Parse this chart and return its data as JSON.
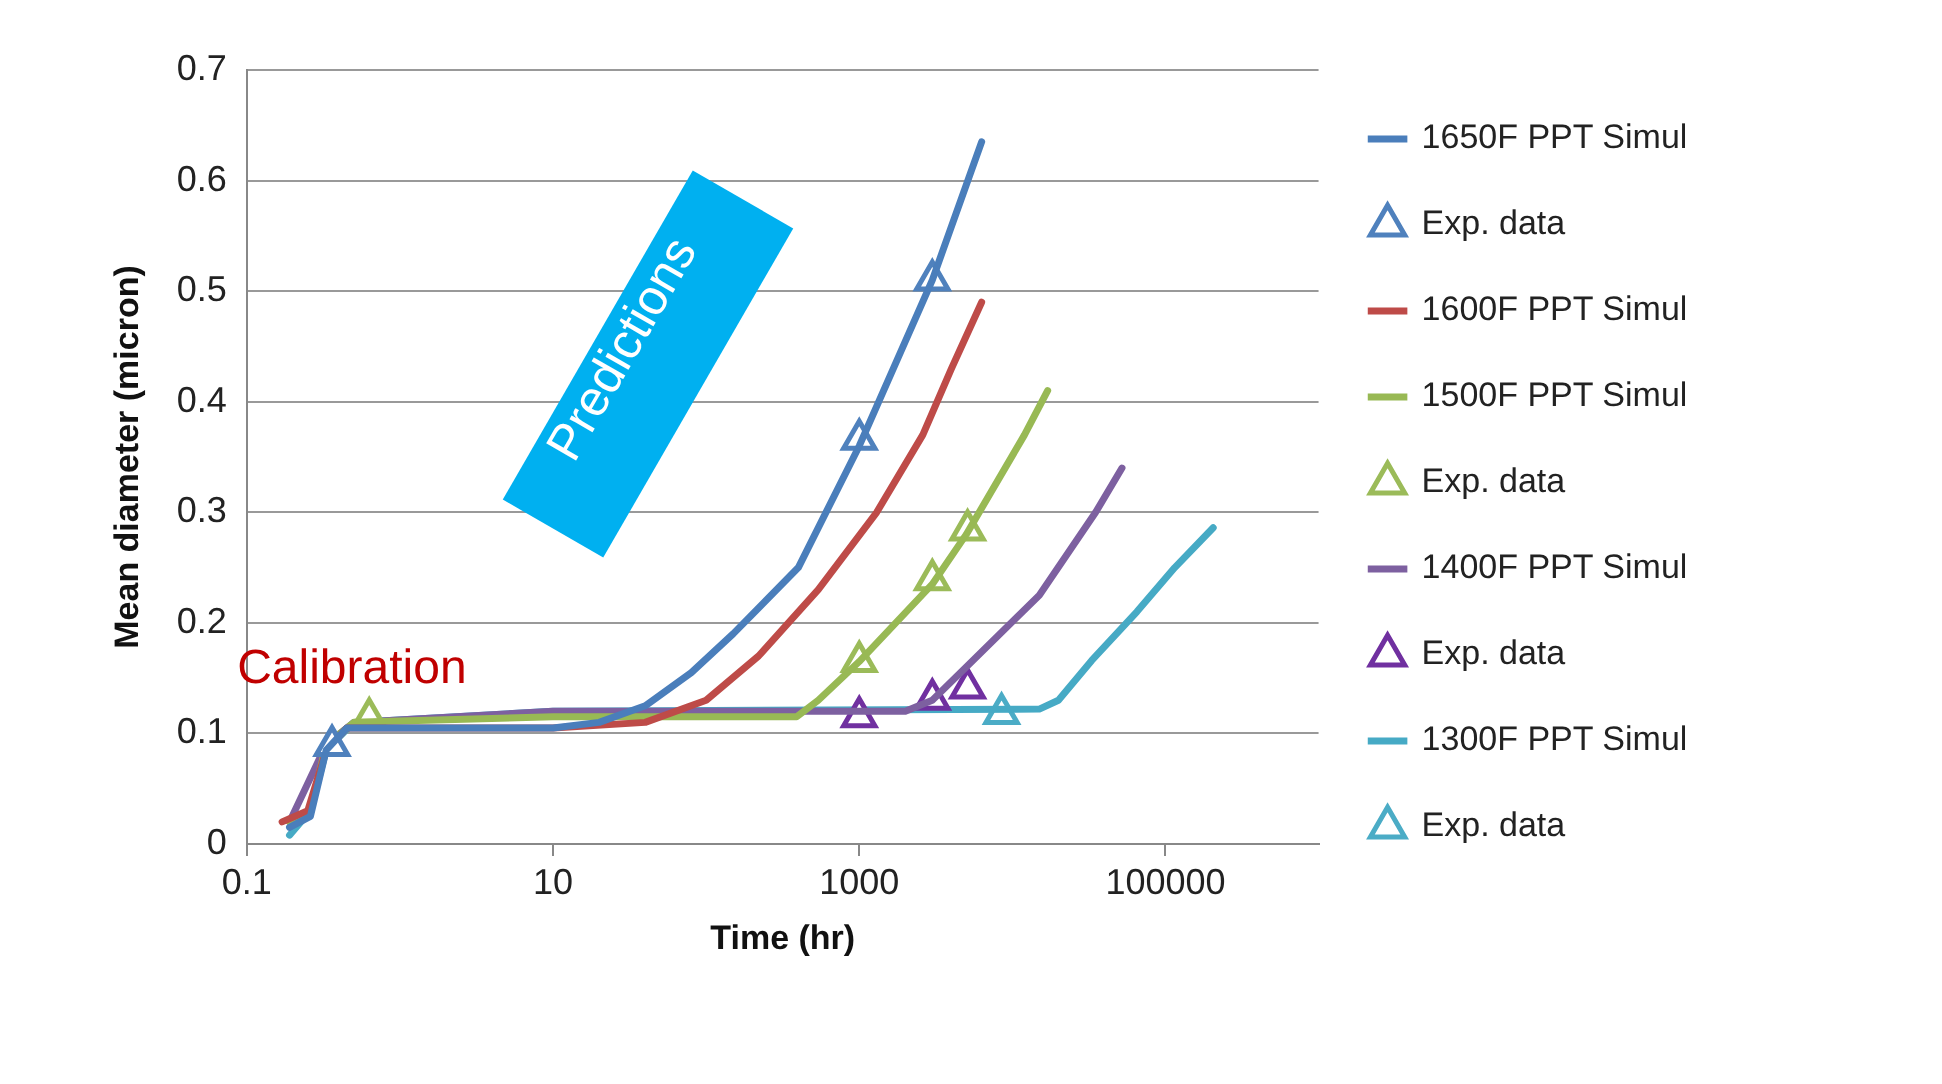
{
  "chart_data": {
    "type": "line",
    "xlabel": "Time (hr)",
    "ylabel": "Mean diameter (micron)",
    "log": "x",
    "grid": "y",
    "legend": "right",
    "marker": "none",
    "line_style": "solid",
    "xlim": [
      0.1,
      1000000
    ],
    "xticks": [
      0.1,
      10,
      1000,
      100000
    ],
    "ylim": [
      0,
      0.7
    ],
    "yticks": [
      0,
      0.1,
      0.2,
      0.3,
      0.4,
      0.5,
      0.6,
      0.7
    ],
    "annotations": [
      "Predictions",
      "Calibration"
    ],
    "series": [
      {
        "name": "1650F PPT Simul",
        "color": "#4a7ebb",
        "x": [
          0.19,
          0.26,
          0.33,
          0.45,
          1,
          10,
          20,
          40,
          80,
          150,
          400,
          1000,
          3000,
          6300
        ],
        "values": [
          0.015,
          0.025,
          0.085,
          0.105,
          0.105,
          0.105,
          0.11,
          0.125,
          0.155,
          0.19,
          0.25,
          0.36,
          0.51,
          0.635
        ]
      },
      {
        "name": "Exp. data",
        "type": "scatter",
        "marker": "triangle",
        "color": "#4f81bd",
        "x": [
          0.36,
          1000,
          3000
        ],
        "values": [
          0.089,
          0.366,
          0.51
        ]
      },
      {
        "name": "1600F PPT Simul",
        "color": "#be4b48",
        "x": [
          0.17,
          0.25,
          0.33,
          0.45,
          10,
          40,
          100,
          220,
          540,
          1300,
          2600,
          4000,
          6300
        ],
        "values": [
          0.02,
          0.03,
          0.085,
          0.105,
          0.105,
          0.11,
          0.13,
          0.17,
          0.23,
          0.3,
          0.37,
          0.43,
          0.49
        ]
      },
      {
        "name": "1500F PPT Simul",
        "color": "#98b954",
        "x": [
          0.19,
          0.26,
          0.33,
          0.5,
          10,
          390,
          540,
          1000,
          3000,
          5000,
          12000,
          17000
        ],
        "values": [
          0.02,
          0.03,
          0.09,
          0.11,
          0.115,
          0.115,
          0.13,
          0.165,
          0.235,
          0.28,
          0.37,
          0.41
        ]
      },
      {
        "name": "Exp. data",
        "type": "scatter",
        "marker": "triangle",
        "color": "#9bbb59",
        "x": [
          0.63,
          1000,
          3000,
          5100
        ],
        "values": [
          0.114,
          0.165,
          0.239,
          0.284
        ]
      },
      {
        "name": "1400F PPT Simul",
        "color": "#7d60a0",
        "x": [
          0.19,
          0.33,
          0.5,
          10,
          2000,
          3000,
          5000,
          15000,
          35000,
          52000
        ],
        "values": [
          0.02,
          0.09,
          0.11,
          0.12,
          0.12,
          0.13,
          0.16,
          0.225,
          0.3,
          0.34
        ]
      },
      {
        "name": "Exp. data",
        "type": "scatter",
        "marker": "triangle",
        "color": "#7030a0",
        "x": [
          1000,
          3000,
          5100
        ],
        "values": [
          0.115,
          0.131,
          0.141
        ]
      },
      {
        "name": "1300F PPT Simul",
        "color": "#46aac5",
        "x": [
          0.19,
          0.26,
          0.33,
          0.5,
          10,
          15000,
          20000,
          33000,
          65000,
          115000,
          205000
        ],
        "values": [
          0.008,
          0.03,
          0.085,
          0.11,
          0.12,
          0.122,
          0.13,
          0.166,
          0.21,
          0.25,
          0.286
        ]
      },
      {
        "name": "Exp. data",
        "type": "scatter",
        "marker": "triangle",
        "color": "#4bacc6",
        "x": [
          8500
        ],
        "values": [
          0.118
        ]
      }
    ]
  }
}
